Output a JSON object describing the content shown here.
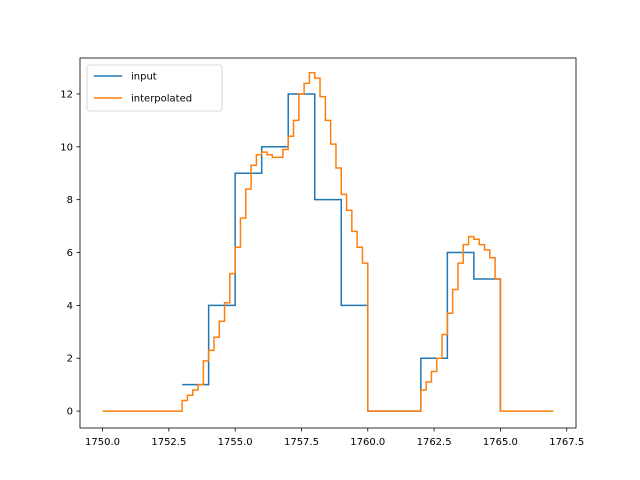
{
  "chart_data": {
    "type": "line",
    "step": true,
    "title": "",
    "xlabel": "",
    "ylabel": "",
    "xlim": [
      1749.15,
      1767.85
    ],
    "ylim": [
      -0.64,
      13.36
    ],
    "xticks": [
      1750.0,
      1752.5,
      1755.0,
      1757.5,
      1760.0,
      1762.5,
      1765.0,
      1767.5
    ],
    "xtick_labels": [
      "1750.0",
      "1752.5",
      "1755.0",
      "1757.5",
      "1760.0",
      "1762.5",
      "1765.0",
      "1767.5"
    ],
    "yticks": [
      0,
      2,
      4,
      6,
      8,
      10,
      12
    ],
    "ytick_labels": [
      "0",
      "2",
      "4",
      "6",
      "8",
      "10",
      "12"
    ],
    "grid": false,
    "legend_position": "upper-left",
    "series": [
      {
        "name": "input",
        "color": "#1f77b4",
        "x": [
          1753,
          1754,
          1755,
          1756,
          1757,
          1758,
          1759,
          1760,
          1762,
          1763,
          1764,
          1765
        ],
        "y": [
          1,
          4,
          9,
          10,
          12,
          8,
          4,
          0,
          2,
          6,
          5,
          0
        ]
      },
      {
        "name": "interpolated",
        "color": "#ff7f0e",
        "x": [
          1750,
          1753,
          1753.2,
          1753.4,
          1753.6,
          1753.8,
          1754,
          1754.2,
          1754.4,
          1754.6,
          1754.8,
          1755,
          1755.2,
          1755.4,
          1755.6,
          1755.8,
          1756,
          1756.2,
          1756.4,
          1756.6,
          1756.8,
          1757,
          1757.2,
          1757.4,
          1757.6,
          1757.8,
          1758,
          1758.2,
          1758.4,
          1758.6,
          1758.8,
          1759,
          1759.2,
          1759.4,
          1759.6,
          1759.8,
          1760,
          1762,
          1762.2,
          1762.4,
          1762.6,
          1762.8,
          1763,
          1763.2,
          1763.4,
          1763.6,
          1763.8,
          1764,
          1764.2,
          1764.4,
          1764.6,
          1764.8,
          1765,
          1767
        ],
        "y": [
          0,
          0.4,
          0.6,
          0.8,
          1.0,
          1.9,
          2.3,
          2.8,
          3.4,
          4.1,
          5.2,
          6.2,
          7.3,
          8.4,
          9.3,
          9.7,
          9.8,
          9.7,
          9.6,
          9.6,
          9.9,
          10.4,
          11.0,
          12.0,
          12.4,
          12.8,
          12.6,
          11.9,
          11.0,
          10.1,
          9.2,
          8.2,
          7.6,
          6.8,
          6.2,
          5.6,
          0,
          0.8,
          1.1,
          1.5,
          2.0,
          2.9,
          3.7,
          4.6,
          5.6,
          6.3,
          6.6,
          6.5,
          6.3,
          6.1,
          5.8,
          5.0,
          0,
          0
        ]
      }
    ]
  }
}
